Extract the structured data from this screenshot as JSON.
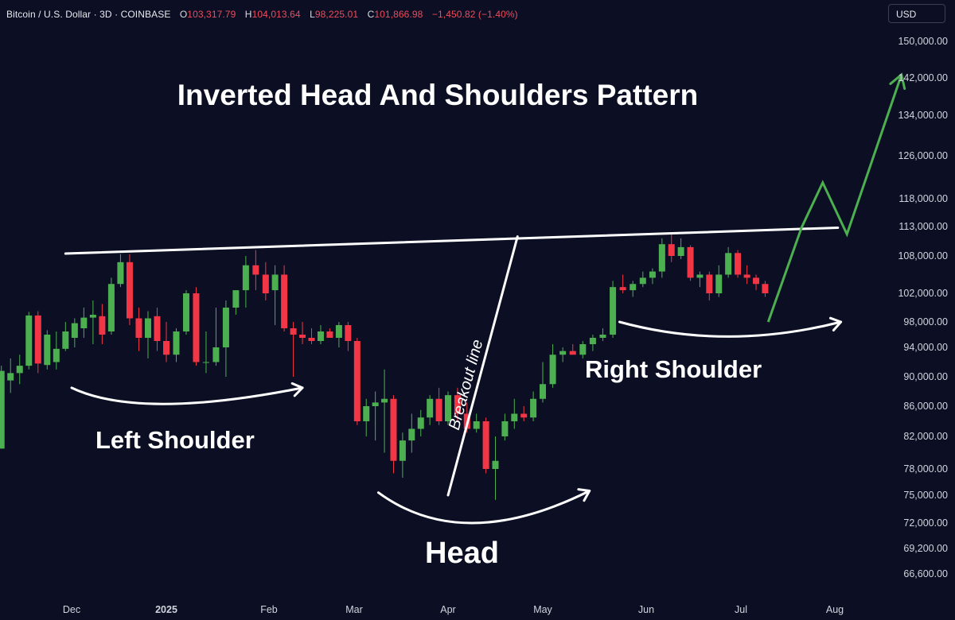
{
  "header": {
    "symbol": "Bitcoin / U.S. Dollar · 3D · COINBASE",
    "open_label": "O",
    "open_value": "103,317.79",
    "high_label": "H",
    "high_value": "104,013.64",
    "low_label": "L",
    "low_value": "98,225.01",
    "close_label": "C",
    "close_value": "101,866.98",
    "change_value": "−1,450.82 (−1.40%)"
  },
  "currency_button": {
    "label": "USD"
  },
  "colors": {
    "background": "#0c0f24",
    "up": "#4caf50",
    "down": "#f23645",
    "line": "#ffffff",
    "projection": "#4caf50"
  },
  "chart_data": {
    "type": "candlestick",
    "title": "Inverted Head And Shoulders Pattern",
    "y_axis": {
      "tick_labels": [
        "150,000.00",
        "142,000.00",
        "134,000.00",
        "126,000.00",
        "118,000.00",
        "113,000.00",
        "108,000.00",
        "102,000.00",
        "98,000.00",
        "94,000.00",
        "90,000.00",
        "86,000.00",
        "82,000.00",
        "78,000.00",
        "75,000.00",
        "72,000.00",
        "69,200.00",
        "66,600.00"
      ],
      "tick_values": [
        150000,
        142000,
        134000,
        126000,
        118000,
        113000,
        108000,
        102000,
        98000,
        94000,
        90000,
        86000,
        82000,
        78000,
        75000,
        72000,
        69200,
        66600
      ],
      "range": [
        66000,
        151000
      ]
    },
    "x_axis": {
      "tick_labels": [
        "Dec",
        "2025",
        "Feb",
        "Mar",
        "Apr",
        "May",
        "Jun",
        "Jul",
        "Aug"
      ],
      "tick_dates": [
        "2024-12-01",
        "2025-01-01",
        "2025-02-01",
        "2025-03-01",
        "2025-04-01",
        "2025-05-01",
        "2025-06-01",
        "2025-07-01",
        "2025-08-01"
      ],
      "range": [
        "2024-11-06",
        "2025-08-12"
      ]
    },
    "candles": [
      {
        "date": "2024-11-08",
        "open": 80500,
        "high": 91500,
        "low": 80500,
        "close": 90800
      },
      {
        "date": "2024-11-11",
        "open": 89500,
        "high": 92500,
        "low": 87800,
        "close": 90500
      },
      {
        "date": "2024-11-14",
        "open": 90500,
        "high": 93000,
        "low": 89000,
        "close": 91500
      },
      {
        "date": "2024-11-17",
        "open": 91500,
        "high": 99400,
        "low": 91000,
        "close": 98900
      },
      {
        "date": "2024-11-20",
        "open": 98900,
        "high": 99500,
        "low": 90500,
        "close": 91800
      },
      {
        "date": "2024-11-23",
        "open": 91600,
        "high": 96700,
        "low": 91000,
        "close": 96000
      },
      {
        "date": "2024-11-26",
        "open": 92000,
        "high": 96500,
        "low": 91000,
        "close": 93800
      },
      {
        "date": "2024-11-29",
        "open": 93800,
        "high": 98000,
        "low": 93500,
        "close": 96500
      },
      {
        "date": "2024-12-02",
        "open": 95500,
        "high": 98500,
        "low": 94000,
        "close": 97800
      },
      {
        "date": "2024-12-05",
        "open": 97000,
        "high": 100000,
        "low": 95500,
        "close": 98600
      },
      {
        "date": "2024-12-08",
        "open": 98600,
        "high": 101000,
        "low": 94500,
        "close": 99000
      },
      {
        "date": "2024-12-11",
        "open": 98800,
        "high": 100500,
        "low": 94500,
        "close": 96000
      },
      {
        "date": "2024-12-14",
        "open": 96500,
        "high": 104500,
        "low": 96000,
        "close": 103500
      },
      {
        "date": "2024-12-17",
        "open": 103500,
        "high": 108300,
        "low": 103000,
        "close": 107000
      },
      {
        "date": "2024-12-20",
        "open": 107000,
        "high": 108300,
        "low": 97500,
        "close": 98500
      },
      {
        "date": "2024-12-23",
        "open": 98500,
        "high": 100000,
        "low": 93500,
        "close": 95500
      },
      {
        "date": "2024-12-26",
        "open": 95500,
        "high": 99500,
        "low": 92500,
        "close": 98500
      },
      {
        "date": "2024-12-29",
        "open": 98800,
        "high": 100000,
        "low": 93500,
        "close": 95000
      },
      {
        "date": "2025-01-01",
        "open": 95000,
        "high": 98000,
        "low": 92000,
        "close": 93000
      },
      {
        "date": "2025-01-04",
        "open": 93000,
        "high": 97000,
        "low": 92000,
        "close": 96500
      },
      {
        "date": "2025-01-07",
        "open": 96500,
        "high": 102500,
        "low": 96000,
        "close": 102000
      },
      {
        "date": "2025-01-10",
        "open": 102000,
        "high": 103000,
        "low": 91500,
        "close": 92000
      },
      {
        "date": "2025-01-13",
        "open": 92000,
        "high": 96500,
        "low": 90500,
        "close": 92000
      },
      {
        "date": "2025-01-16",
        "open": 92000,
        "high": 100000,
        "low": 91500,
        "close": 94000
      },
      {
        "date": "2025-01-19",
        "open": 94000,
        "high": 101000,
        "low": 90000,
        "close": 100000
      },
      {
        "date": "2025-01-22",
        "open": 100000,
        "high": 102500,
        "low": 99000,
        "close": 102500
      },
      {
        "date": "2025-01-25",
        "open": 102500,
        "high": 108000,
        "low": 100000,
        "close": 106500
      },
      {
        "date": "2025-01-28",
        "open": 106500,
        "high": 109000,
        "low": 102500,
        "close": 105000
      },
      {
        "date": "2025-01-31",
        "open": 105000,
        "high": 107000,
        "low": 101000,
        "close": 102000
      },
      {
        "date": "2025-02-03",
        "open": 102500,
        "high": 106500,
        "low": 97500,
        "close": 105000
      },
      {
        "date": "2025-02-06",
        "open": 105000,
        "high": 106500,
        "low": 96500,
        "close": 97000
      },
      {
        "date": "2025-02-09",
        "open": 97000,
        "high": 98000,
        "low": 90000,
        "close": 96000
      },
      {
        "date": "2025-02-12",
        "open": 96000,
        "high": 98000,
        "low": 94500,
        "close": 95500
      },
      {
        "date": "2025-02-15",
        "open": 95500,
        "high": 97000,
        "low": 94500,
        "close": 95000
      },
      {
        "date": "2025-02-18",
        "open": 95000,
        "high": 97500,
        "low": 94500,
        "close": 96500
      },
      {
        "date": "2025-02-21",
        "open": 96500,
        "high": 97000,
        "low": 95500,
        "close": 95500
      },
      {
        "date": "2025-02-24",
        "open": 95500,
        "high": 98000,
        "low": 94000,
        "close": 97500
      },
      {
        "date": "2025-02-27",
        "open": 97500,
        "high": 98000,
        "low": 93500,
        "close": 95000
      },
      {
        "date": "2025-03-02",
        "open": 95000,
        "high": 95500,
        "low": 83500,
        "close": 84000
      },
      {
        "date": "2025-03-05",
        "open": 84000,
        "high": 87000,
        "low": 82000,
        "close": 86000
      },
      {
        "date": "2025-03-08",
        "open": 86000,
        "high": 88000,
        "low": 81500,
        "close": 86500
      },
      {
        "date": "2025-03-11",
        "open": 86500,
        "high": 91000,
        "low": 80000,
        "close": 87000
      },
      {
        "date": "2025-03-14",
        "open": 87000,
        "high": 87500,
        "low": 77500,
        "close": 79000
      },
      {
        "date": "2025-03-17",
        "open": 79000,
        "high": 82500,
        "low": 77000,
        "close": 81500
      },
      {
        "date": "2025-03-20",
        "open": 81500,
        "high": 85000,
        "low": 80000,
        "close": 83000
      },
      {
        "date": "2025-03-23",
        "open": 83000,
        "high": 85500,
        "low": 82000,
        "close": 84500
      },
      {
        "date": "2025-03-26",
        "open": 84500,
        "high": 87500,
        "low": 83500,
        "close": 87000
      },
      {
        "date": "2025-03-29",
        "open": 87000,
        "high": 88500,
        "low": 83500,
        "close": 84000
      },
      {
        "date": "2025-04-01",
        "open": 84000,
        "high": 88000,
        "low": 83500,
        "close": 87500
      },
      {
        "date": "2025-04-04",
        "open": 87500,
        "high": 88500,
        "low": 84000,
        "close": 85000
      },
      {
        "date": "2025-04-07",
        "open": 85000,
        "high": 86500,
        "low": 82500,
        "close": 83000
      },
      {
        "date": "2025-04-10",
        "open": 83000,
        "high": 85000,
        "low": 82500,
        "close": 84000
      },
      {
        "date": "2025-04-13",
        "open": 84000,
        "high": 84500,
        "low": 77500,
        "close": 78000
      },
      {
        "date": "2025-04-16",
        "open": 78000,
        "high": 82000,
        "low": 74500,
        "close": 79000
      },
      {
        "date": "2025-04-19",
        "open": 82000,
        "high": 85000,
        "low": 81500,
        "close": 84000
      },
      {
        "date": "2025-04-22",
        "open": 84000,
        "high": 87000,
        "low": 83000,
        "close": 85000
      },
      {
        "date": "2025-04-25",
        "open": 85000,
        "high": 86000,
        "low": 84000,
        "close": 84500
      },
      {
        "date": "2025-04-28",
        "open": 84500,
        "high": 88000,
        "low": 84000,
        "close": 87000
      },
      {
        "date": "2025-05-01",
        "open": 87000,
        "high": 92000,
        "low": 86500,
        "close": 89000
      },
      {
        "date": "2025-05-04",
        "open": 89000,
        "high": 94500,
        "low": 88500,
        "close": 93000
      },
      {
        "date": "2025-05-07",
        "open": 93000,
        "high": 94000,
        "low": 92000,
        "close": 93500
      },
      {
        "date": "2025-05-10",
        "open": 93500,
        "high": 94500,
        "low": 93000,
        "close": 93000
      },
      {
        "date": "2025-05-13",
        "open": 93000,
        "high": 95000,
        "low": 92500,
        "close": 94500
      },
      {
        "date": "2025-05-16",
        "open": 94500,
        "high": 96000,
        "low": 93500,
        "close": 95500
      },
      {
        "date": "2025-05-19",
        "open": 95500,
        "high": 97000,
        "low": 95000,
        "close": 96000
      },
      {
        "date": "2025-05-22",
        "open": 96000,
        "high": 104000,
        "low": 95500,
        "close": 103000
      },
      {
        "date": "2025-05-25",
        "open": 103000,
        "high": 105000,
        "low": 102000,
        "close": 102500
      },
      {
        "date": "2025-05-28",
        "open": 102500,
        "high": 104000,
        "low": 101500,
        "close": 103500
      },
      {
        "date": "2025-05-31",
        "open": 103500,
        "high": 105500,
        "low": 103000,
        "close": 104500
      },
      {
        "date": "2025-06-03",
        "open": 104500,
        "high": 106000,
        "low": 103500,
        "close": 105500
      },
      {
        "date": "2025-06-06",
        "open": 105500,
        "high": 111000,
        "low": 104500,
        "close": 110000
      },
      {
        "date": "2025-06-09",
        "open": 110000,
        "high": 112000,
        "low": 107000,
        "close": 108000
      },
      {
        "date": "2025-06-12",
        "open": 108000,
        "high": 111000,
        "low": 107500,
        "close": 109500
      },
      {
        "date": "2025-06-15",
        "open": 109500,
        "high": 109800,
        "low": 104000,
        "close": 104500
      },
      {
        "date": "2025-06-18",
        "open": 104500,
        "high": 105500,
        "low": 103000,
        "close": 105000
      },
      {
        "date": "2025-06-21",
        "open": 105000,
        "high": 105500,
        "low": 101000,
        "close": 102000
      },
      {
        "date": "2025-06-24",
        "open": 102000,
        "high": 106500,
        "low": 101500,
        "close": 105000
      },
      {
        "date": "2025-06-27",
        "open": 105000,
        "high": 109500,
        "low": 104500,
        "close": 108500
      },
      {
        "date": "2025-06-30",
        "open": 108500,
        "high": 109000,
        "low": 104500,
        "close": 105000
      },
      {
        "date": "2025-07-03",
        "open": 105000,
        "high": 106500,
        "low": 103500,
        "close": 104500
      },
      {
        "date": "2025-07-06",
        "open": 104500,
        "high": 105000,
        "low": 102500,
        "close": 103500
      },
      {
        "date": "2025-07-09",
        "open": 103500,
        "high": 104000,
        "low": 101500,
        "close": 102000
      }
    ],
    "annotations": [
      {
        "type": "line",
        "name": "neckline",
        "points": [
          [
            "2024-11-29",
            108400
          ],
          [
            "2025-08-02",
            112800
          ]
        ]
      },
      {
        "type": "line",
        "name": "breakout-line",
        "label": "Breakout line",
        "points": [
          [
            "2025-04-01",
            75000
          ],
          [
            "2025-04-23",
            111300
          ]
        ]
      },
      {
        "type": "arc-arrow",
        "name": "left-shoulder-arrow",
        "points": [
          [
            "2024-12-01",
            88500
          ],
          [
            "2024-12-31",
            86300
          ],
          [
            "2025-02-12",
            88500
          ]
        ]
      },
      {
        "type": "arc-arrow",
        "name": "head-arrow",
        "points": [
          [
            "2025-03-09",
            75300
          ],
          [
            "2025-04-09",
            72000
          ],
          [
            "2025-05-15",
            75500
          ]
        ]
      },
      {
        "type": "arc-arrow",
        "name": "right-shoulder-arrow",
        "points": [
          [
            "2025-05-24",
            98000
          ],
          [
            "2025-06-27",
            95700
          ],
          [
            "2025-08-03",
            98000
          ]
        ]
      },
      {
        "type": "projection",
        "name": "projection-path",
        "points": [
          [
            "2025-07-10",
            98000
          ],
          [
            "2025-07-21",
            112800
          ],
          [
            "2025-07-28",
            121000
          ],
          [
            "2025-08-05",
            111700
          ],
          [
            "2025-08-23",
            142700
          ]
        ]
      },
      {
        "type": "label",
        "name": "left-shoulder-label",
        "text": "Left Shoulder"
      },
      {
        "type": "label",
        "name": "head-label",
        "text": "Head"
      },
      {
        "type": "label",
        "name": "right-shoulder-label",
        "text": "Right Shoulder"
      }
    ]
  }
}
